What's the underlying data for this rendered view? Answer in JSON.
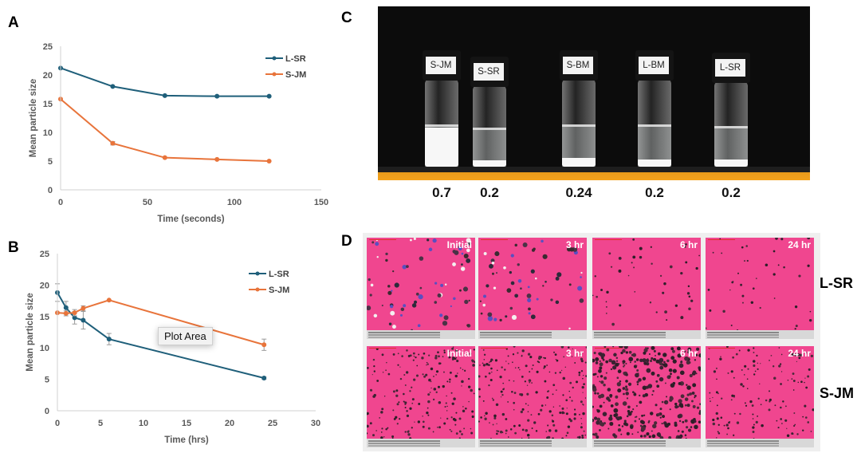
{
  "panels": {
    "a_letter": "A",
    "b_letter": "B",
    "c_letter": "C",
    "d_letter": "D"
  },
  "chart_data": [
    {
      "id": "A",
      "type": "line",
      "title": "",
      "xlabel": "Time (seconds)",
      "ylabel": "Mean particle size",
      "xlim": [
        0,
        150
      ],
      "ylim": [
        0,
        25
      ],
      "xticks": [
        0,
        50,
        100,
        150
      ],
      "yticks": [
        0,
        5,
        10,
        15,
        20,
        25
      ],
      "grid": false,
      "legend": "top-right",
      "series": [
        {
          "name": "L-SR",
          "color": "#1f5f7a",
          "x": [
            0,
            30,
            60,
            90,
            120
          ],
          "y": [
            21.2,
            18.0,
            16.4,
            16.3,
            16.3
          ],
          "err": [
            0,
            0,
            0,
            0,
            0
          ]
        },
        {
          "name": "S-JM",
          "color": "#e8743b",
          "x": [
            0,
            30,
            60,
            90,
            120
          ],
          "y": [
            15.8,
            8.1,
            5.6,
            5.3,
            5.0
          ],
          "err": [
            0,
            0.3,
            0,
            0,
            0
          ]
        }
      ]
    },
    {
      "id": "B",
      "type": "line",
      "title": "",
      "xlabel": "Time (hrs)",
      "ylabel": "Mean particle size",
      "xlim": [
        0,
        30
      ],
      "ylim": [
        0,
        25
      ],
      "xticks": [
        0,
        5,
        10,
        15,
        20,
        25,
        30
      ],
      "yticks": [
        0,
        5,
        10,
        15,
        20,
        25
      ],
      "grid": false,
      "legend": "top-right",
      "tooltip": "Plot Area",
      "series": [
        {
          "name": "L-SR",
          "color": "#1f5f7a",
          "x": [
            0,
            1,
            2,
            3,
            6,
            24
          ],
          "y": [
            18.8,
            16.4,
            14.8,
            14.4,
            11.4,
            5.2
          ],
          "err": [
            1.4,
            1.0,
            1.0,
            1.4,
            0.9,
            0.2
          ]
        },
        {
          "name": "S-JM",
          "color": "#e8743b",
          "x": [
            0,
            1,
            2,
            3,
            6,
            24
          ],
          "y": [
            15.6,
            15.5,
            15.6,
            16.3,
            17.6,
            10.5
          ],
          "err": [
            0,
            0.4,
            0.5,
            0.4,
            0,
            0.9
          ]
        }
      ]
    }
  ],
  "panel_c": {
    "vials": [
      {
        "label": "S-JM",
        "value": "0.7",
        "sediment": 0.45
      },
      {
        "label": "S-SR",
        "value": "0.2",
        "sediment": 0.08
      },
      {
        "label": "S-BM",
        "value": "0.24",
        "sediment": 0.1
      },
      {
        "label": "L-BM",
        "value": "0.2",
        "sediment": 0.08
      },
      {
        "label": "L-SR",
        "value": "0.2",
        "sediment": 0.08
      }
    ]
  },
  "panel_d": {
    "rows": [
      {
        "label": "L-SR",
        "times": [
          "Initial",
          "3 hr",
          "6 hr",
          "24 hr"
        ]
      },
      {
        "label": "S-JM",
        "times": [
          "Initial",
          "3 hr",
          "6 hr",
          "24 hr"
        ]
      }
    ]
  }
}
